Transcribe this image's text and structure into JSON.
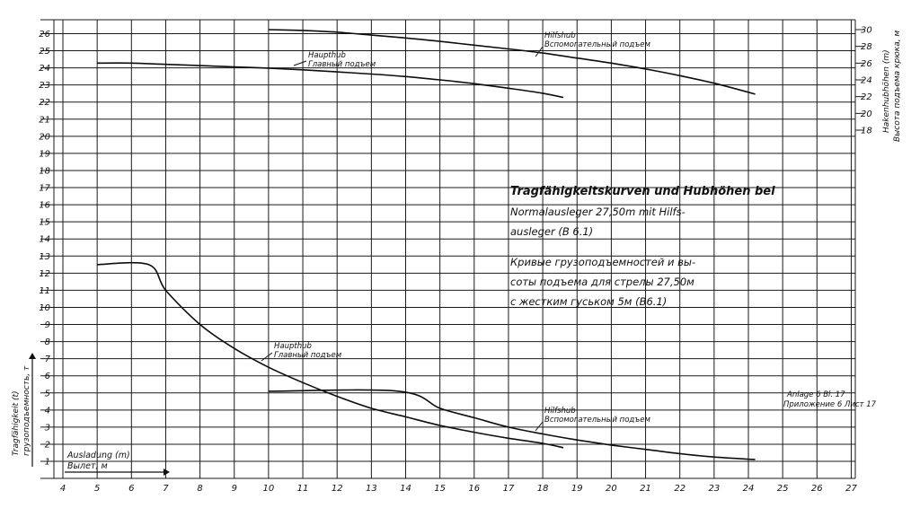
{
  "chart_data": {
    "type": "line",
    "xlabel": "Ausladung (m)",
    "xlabel_ru": "Вылет, м",
    "ylabel": "Tragfähigkeit (t)",
    "ylabel_ru": "грузоподъемность, т",
    "ylabel_right": "Hakenhubhöhen (m)",
    "ylabel_right_ru": "Высота подъема крюка, м",
    "x_ticks": [
      "4",
      "5",
      "6",
      "7",
      "8",
      "9",
      "10",
      "11",
      "12",
      "13",
      "14",
      "15",
      "16",
      "17",
      "18",
      "19",
      "20",
      "21",
      "22",
      "23",
      "24",
      "25",
      "26",
      "27"
    ],
    "y_ticks": [
      "1",
      "2",
      "3",
      "4",
      "5",
      "6",
      "7",
      "8",
      "9",
      "10",
      "11",
      "12",
      "13",
      "14",
      "15",
      "16",
      "17",
      "18",
      "19",
      "20",
      "21",
      "22",
      "23",
      "24",
      "25",
      "26"
    ],
    "y_right_ticks": [
      "18",
      "20",
      "22",
      "24",
      "26",
      "28",
      "30"
    ],
    "xlim": [
      3.5,
      27.6
    ],
    "ylim": [
      0,
      26.5
    ],
    "y_right_lim": [
      18,
      30
    ],
    "grid": true,
    "title_lines": [
      "Tragfähigkeitskurven und Hubhöhen bei",
      "Normalausleger 27,50m mit Hilfs-",
      "ausleger (B 6.1)"
    ],
    "title_ru_lines": [
      "Кривые грузоподъемностей и вы-",
      "соты подъема для стрелы 27,50м",
      "с жестким гуськом 5м (В6.1)"
    ],
    "annotation_lines": [
      "Anlage 6 Bl. 17",
      "Приложение 6 Лист 17"
    ],
    "series": [
      {
        "name": "Haupthub",
        "name_ru": "Главный подъем",
        "kind": "capacity",
        "axis": "left",
        "x": [
          5,
          6.5,
          7,
          8,
          9,
          10,
          11,
          12,
          13,
          14,
          15,
          16,
          17,
          18,
          18.6
        ],
        "y": [
          12.5,
          12.5,
          11.0,
          9.0,
          7.6,
          6.5,
          5.6,
          4.8,
          4.1,
          3.6,
          3.1,
          2.7,
          2.35,
          2.05,
          1.8
        ]
      },
      {
        "name": "Hilfshub",
        "name_ru": "Вспомогательный подъем",
        "kind": "capacity",
        "axis": "left",
        "x": [
          10,
          13.8,
          15,
          16,
          17,
          18,
          19,
          20,
          21,
          22,
          23,
          24.2
        ],
        "y": [
          5.1,
          5.1,
          4.1,
          3.55,
          3.0,
          2.6,
          2.25,
          1.95,
          1.7,
          1.45,
          1.25,
          1.1
        ]
      },
      {
        "name": "Haupthub",
        "name_ru": "Главный подъем",
        "kind": "hook_height",
        "axis": "right",
        "x": [
          5,
          6,
          7,
          8,
          9,
          10,
          11,
          12,
          13,
          14,
          15,
          16,
          17,
          18,
          18.6
        ],
        "y": [
          26.0,
          26.0,
          25.85,
          25.7,
          25.55,
          25.4,
          25.2,
          24.95,
          24.7,
          24.4,
          24.0,
          23.55,
          23.0,
          22.4,
          21.9
        ]
      },
      {
        "name": "Hilfshub",
        "name_ru": "Вспомогательный подъем",
        "kind": "hook_height",
        "axis": "right",
        "x": [
          10,
          11,
          12,
          13,
          14,
          15,
          16,
          17,
          18,
          19,
          20,
          21,
          22,
          23,
          24.2
        ],
        "y": [
          30.0,
          29.9,
          29.7,
          29.35,
          29.0,
          28.6,
          28.15,
          27.7,
          27.2,
          26.6,
          26.0,
          25.3,
          24.5,
          23.6,
          22.3
        ]
      }
    ]
  }
}
